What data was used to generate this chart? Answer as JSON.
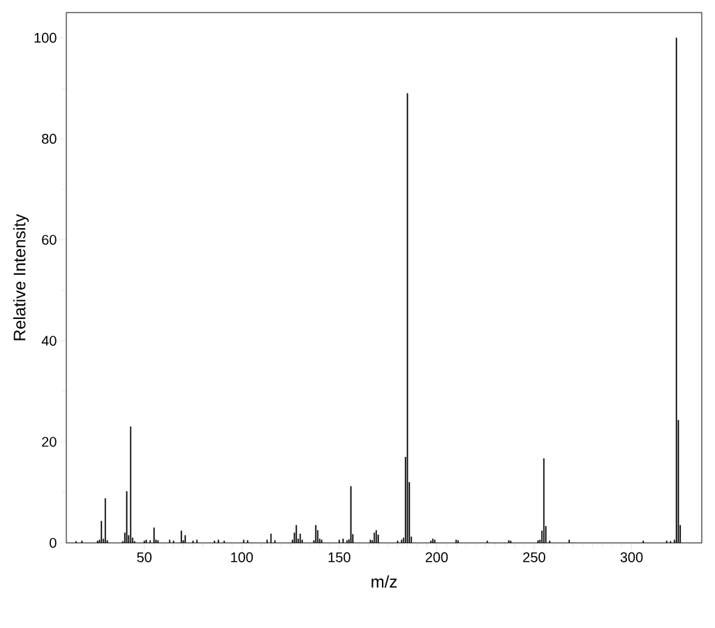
{
  "chart_data": {
    "type": "bar",
    "xlabel": "m/z",
    "ylabel": "Relative Intensity",
    "color": "#000000",
    "x": [
      15,
      18,
      26,
      27,
      28,
      29,
      30,
      31,
      39,
      40,
      41,
      42,
      43,
      44,
      45,
      50,
      51,
      53,
      55,
      56,
      57,
      63,
      65,
      69,
      70,
      71,
      75,
      77,
      86,
      88,
      91,
      101,
      103,
      113,
      115,
      117,
      126,
      127,
      128,
      129,
      130,
      131,
      137,
      138,
      139,
      140,
      141,
      150,
      152,
      154,
      155,
      156,
      157,
      166,
      167,
      168,
      169,
      170,
      180,
      182,
      183,
      184,
      185,
      186,
      187,
      197,
      198,
      199,
      210,
      211,
      226,
      237,
      238,
      252,
      253,
      254,
      255,
      256,
      258,
      268,
      306,
      318,
      320,
      322,
      323,
      324,
      325
    ],
    "values": [
      0.3,
      0.4,
      0.4,
      0.6,
      4.3,
      0.8,
      8.8,
      0.5,
      0.3,
      2.0,
      10.2,
      1.5,
      23,
      1.0,
      0.3,
      0.4,
      0.6,
      0.5,
      3.0,
      0.6,
      0.5,
      0.6,
      0.4,
      2.4,
      0.5,
      1.5,
      0.4,
      0.6,
      0.4,
      0.6,
      0.4,
      0.6,
      0.5,
      0.6,
      1.8,
      0.5,
      0.6,
      2.0,
      3.5,
      0.8,
      1.8,
      0.6,
      0.5,
      3.5,
      2.5,
      0.8,
      0.6,
      0.6,
      0.8,
      0.5,
      0.7,
      11.2,
      1.7,
      0.6,
      0.5,
      2.0,
      2.5,
      1.6,
      0.4,
      0.6,
      1.0,
      17,
      89,
      12,
      1.2,
      0.4,
      0.8,
      0.6,
      0.6,
      0.5,
      0.4,
      0.5,
      0.4,
      0.5,
      0.6,
      2.4,
      16.7,
      3.3,
      0.4,
      0.6,
      0.4,
      0.4,
      0.3,
      0.6,
      100,
      24.3,
      3.5
    ],
    "xlim": [
      10,
      336
    ],
    "ylim": [
      0,
      105
    ],
    "xticks": [
      50,
      100,
      150,
      200,
      250,
      300
    ],
    "yticks": [
      0,
      20,
      40,
      60,
      80,
      100
    ],
    "grid": false
  }
}
